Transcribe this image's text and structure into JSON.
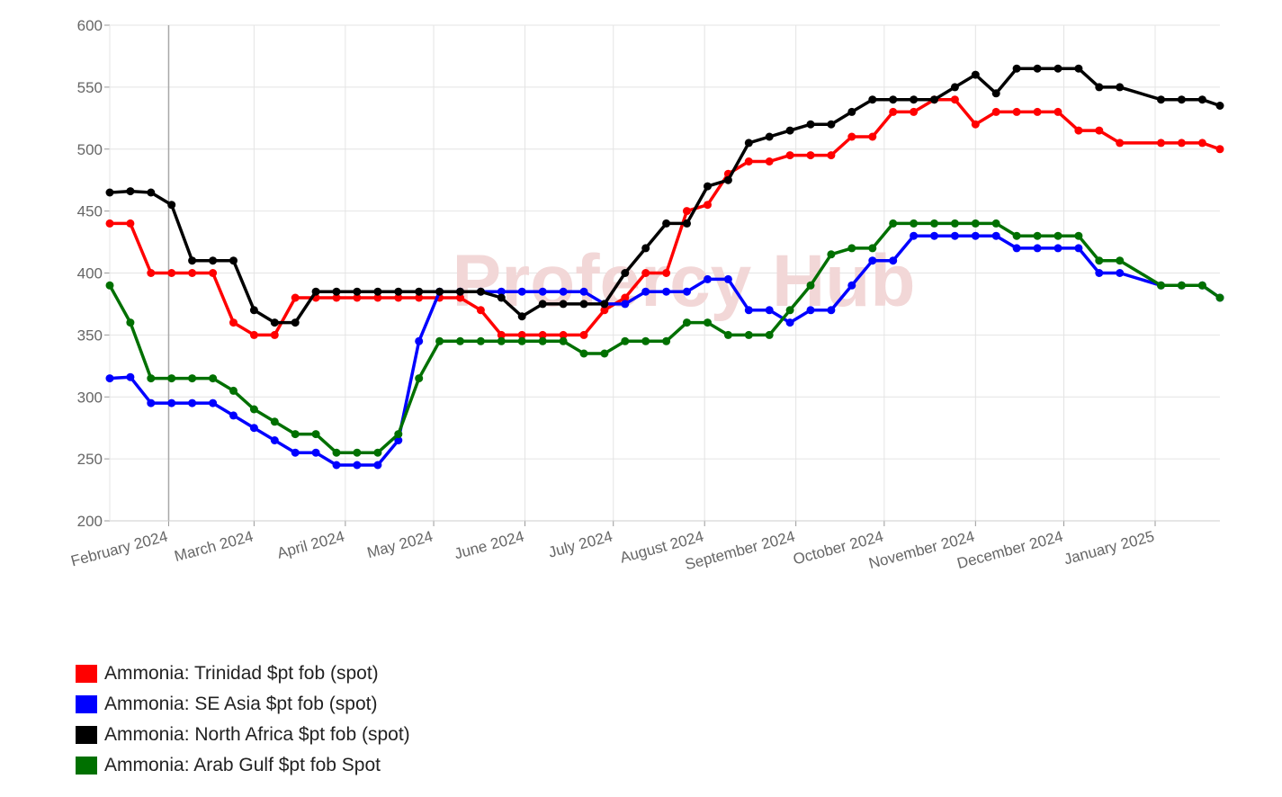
{
  "watermark": "Profercy Hub",
  "chart_data": {
    "type": "line",
    "title": "",
    "xlabel": "",
    "ylabel": "",
    "ylim": [
      200,
      600
    ],
    "yticks": [
      200,
      250,
      300,
      350,
      400,
      450,
      500,
      550,
      600
    ],
    "xlim": [
      "2024-01-12",
      "2025-01-23"
    ],
    "xticks": [
      {
        "date": "2024-02-01",
        "label": "February 2024"
      },
      {
        "date": "2024-03-01",
        "label": "March 2024"
      },
      {
        "date": "2024-04-01",
        "label": "April 2024"
      },
      {
        "date": "2024-05-01",
        "label": "May 2024"
      },
      {
        "date": "2024-06-01",
        "label": "June 2024"
      },
      {
        "date": "2024-07-01",
        "label": "July 2024"
      },
      {
        "date": "2024-08-01",
        "label": "August 2024"
      },
      {
        "date": "2024-09-01",
        "label": "September 2024"
      },
      {
        "date": "2024-10-01",
        "label": "October 2024"
      },
      {
        "date": "2024-11-01",
        "label": "November 2024"
      },
      {
        "date": "2024-12-01",
        "label": "December 2024"
      },
      {
        "date": "2025-01-01",
        "label": "January 2025"
      }
    ],
    "grid": true,
    "legend_position": "bottom-left",
    "x": [
      "2024-01-12",
      "2024-01-19",
      "2024-01-26",
      "2024-02-02",
      "2024-02-09",
      "2024-02-16",
      "2024-02-23",
      "2024-03-01",
      "2024-03-08",
      "2024-03-15",
      "2024-03-22",
      "2024-03-29",
      "2024-04-05",
      "2024-04-12",
      "2024-04-19",
      "2024-04-26",
      "2024-05-03",
      "2024-05-10",
      "2024-05-17",
      "2024-05-24",
      "2024-05-31",
      "2024-06-07",
      "2024-06-14",
      "2024-06-21",
      "2024-06-28",
      "2024-07-05",
      "2024-07-12",
      "2024-07-19",
      "2024-07-26",
      "2024-08-02",
      "2024-08-09",
      "2024-08-16",
      "2024-08-23",
      "2024-08-30",
      "2024-09-06",
      "2024-09-13",
      "2024-09-20",
      "2024-09-27",
      "2024-10-04",
      "2024-10-11",
      "2024-10-18",
      "2024-10-25",
      "2024-11-01",
      "2024-11-08",
      "2024-11-15",
      "2024-11-22",
      "2024-11-29",
      "2024-12-06",
      "2024-12-13",
      "2024-12-20",
      "2025-01-03",
      "2025-01-10",
      "2025-01-17",
      "2025-01-23"
    ],
    "series": [
      {
        "name": "Ammonia: Trinidad $pt fob (spot)",
        "color": "#ff0000",
        "values": [
          440,
          440,
          400,
          400,
          400,
          400,
          360,
          350,
          350,
          380,
          380,
          380,
          380,
          380,
          380,
          380,
          380,
          380,
          370,
          350,
          350,
          350,
          350,
          350,
          370,
          380,
          400,
          400,
          450,
          455,
          480,
          490,
          490,
          495,
          495,
          495,
          510,
          510,
          530,
          530,
          540,
          540,
          520,
          530,
          530,
          530,
          530,
          515,
          515,
          505,
          505,
          505,
          505,
          500
        ]
      },
      {
        "name": "Ammonia: SE Asia $pt fob (spot)",
        "color": "#0000ff",
        "values": [
          315,
          316,
          295,
          295,
          295,
          295,
          285,
          275,
          265,
          255,
          255,
          245,
          245,
          245,
          265,
          345,
          385,
          385,
          385,
          385,
          385,
          385,
          385,
          385,
          375,
          375,
          385,
          385,
          385,
          395,
          395,
          370,
          370,
          360,
          370,
          370,
          390,
          410,
          410,
          430,
          430,
          430,
          430,
          430,
          420,
          420,
          420,
          420,
          400,
          400,
          390,
          390,
          390,
          380
        ]
      },
      {
        "name": "Ammonia: North Africa $pt fob (spot)",
        "color": "#000000",
        "values": [
          465,
          466,
          465,
          455,
          410,
          410,
          410,
          370,
          360,
          360,
          385,
          385,
          385,
          385,
          385,
          385,
          385,
          385,
          385,
          380,
          365,
          375,
          375,
          375,
          375,
          400,
          420,
          440,
          440,
          470,
          475,
          505,
          510,
          515,
          520,
          520,
          530,
          540,
          540,
          540,
          540,
          550,
          560,
          545,
          565,
          565,
          565,
          565,
          550,
          550,
          540,
          540,
          540,
          535
        ]
      },
      {
        "name": "Ammonia: Arab Gulf $pt fob Spot",
        "color": "#007000",
        "values": [
          390,
          360,
          315,
          315,
          315,
          315,
          305,
          290,
          280,
          270,
          270,
          255,
          255,
          255,
          270,
          315,
          345,
          345,
          345,
          345,
          345,
          345,
          345,
          335,
          335,
          345,
          345,
          345,
          360,
          360,
          350,
          350,
          350,
          370,
          390,
          415,
          420,
          420,
          440,
          440,
          440,
          440,
          440,
          440,
          430,
          430,
          430,
          430,
          410,
          410,
          390,
          390,
          390,
          380
        ]
      }
    ]
  }
}
